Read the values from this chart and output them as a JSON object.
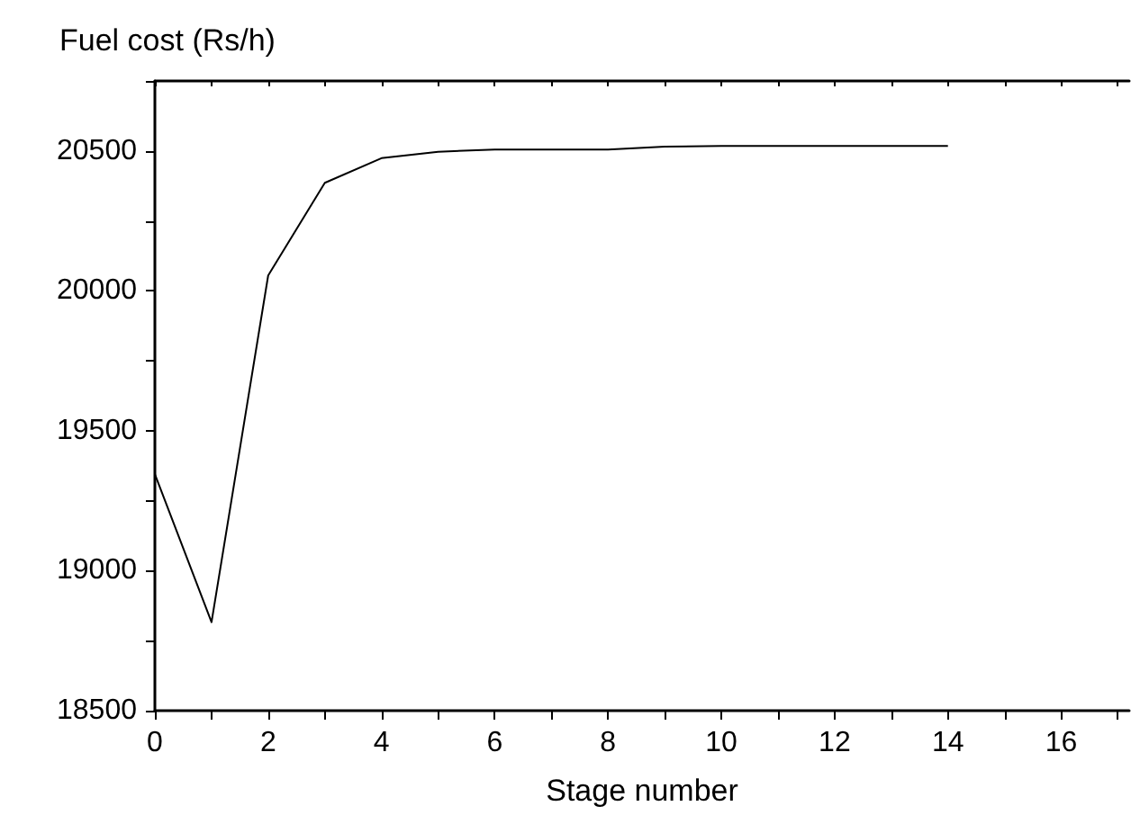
{
  "chart_data": {
    "type": "line",
    "xlabel": "Stage number",
    "ylabel": "Fuel cost (Rs/h)",
    "x": [
      0,
      1,
      2,
      3,
      4,
      5,
      6,
      7,
      8,
      9,
      10,
      11,
      12,
      13,
      14
    ],
    "series": [
      {
        "color": "#000000",
        "values": [
          19345,
          18816,
          20055,
          20386,
          20474,
          20497,
          20505,
          20505,
          20505,
          20515,
          20518,
          20518,
          20518,
          20518,
          20518
        ]
      }
    ],
    "xlim": [
      0,
      17.2
    ],
    "xticks": [
      0,
      2,
      4,
      6,
      8,
      10,
      12,
      14,
      16
    ],
    "ylim": [
      18500,
      20750
    ],
    "yticks": [
      18500,
      19000,
      19500,
      20000,
      20500
    ],
    "grid": false,
    "marker": "none",
    "line_style": "solid"
  }
}
